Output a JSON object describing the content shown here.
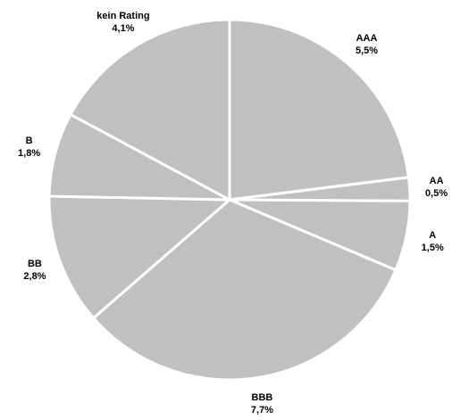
{
  "chart_data": {
    "type": "pie",
    "categories": [
      "AAA",
      "AA",
      "A",
      "BBB",
      "BB",
      "B",
      "kein Rating"
    ],
    "values": [
      5.5,
      0.5,
      1.5,
      7.7,
      2.8,
      1.8,
      4.1
    ],
    "value_labels": [
      "5,5%",
      "0,5%",
      "1,5%",
      "7,7%",
      "2,8%",
      "1,8%",
      "4,1%"
    ],
    "color": "#c0c0c0"
  }
}
